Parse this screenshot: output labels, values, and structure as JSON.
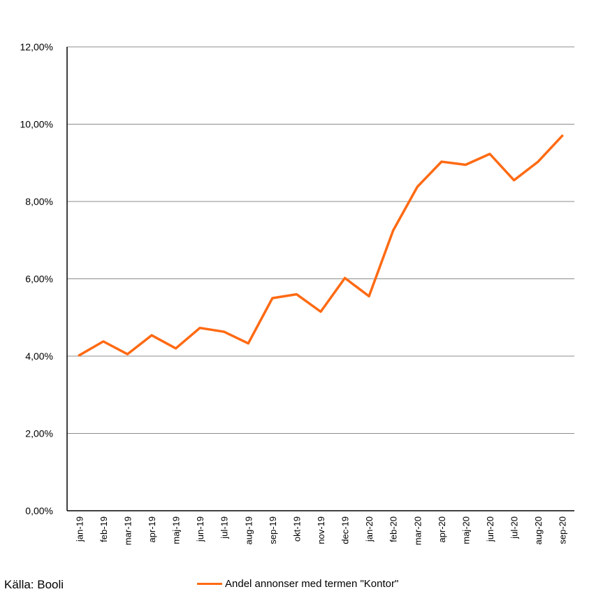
{
  "colors": {
    "line": "#FF6A13",
    "grid": "#8c8c8c",
    "axis": "#000000"
  },
  "source": "Källa: Booli",
  "chart_data": {
    "type": "line",
    "title": "",
    "xlabel": "",
    "ylabel": "",
    "ylim": [
      0,
      12
    ],
    "yticks": [
      0,
      2,
      4,
      6,
      8,
      10,
      12
    ],
    "ytick_labels": [
      "0,00%",
      "2,00%",
      "4,00%",
      "6,00%",
      "8,00%",
      "10,00%",
      "12,00%"
    ],
    "grid": "horizontal",
    "legend_position": "bottom",
    "categories": [
      "jan-19",
      "feb-19",
      "mar-19",
      "apr-19",
      "maj-19",
      "jun-19",
      "jul-19",
      "aug-19",
      "sep-19",
      "okt-19",
      "nov-19",
      "dec-19",
      "jan-20",
      "feb-20",
      "mar-20",
      "apr-20",
      "maj-20",
      "jun-20",
      "jul-20",
      "aug-20",
      "sep-20"
    ],
    "series": [
      {
        "name": "Andel annonser med termen \"Kontor\"",
        "values": [
          4.02,
          4.38,
          4.05,
          4.54,
          4.2,
          4.73,
          4.63,
          4.33,
          5.5,
          5.6,
          5.15,
          6.02,
          5.55,
          7.25,
          8.38,
          9.03,
          8.95,
          9.23,
          8.55,
          9.03,
          9.7
        ]
      }
    ]
  }
}
